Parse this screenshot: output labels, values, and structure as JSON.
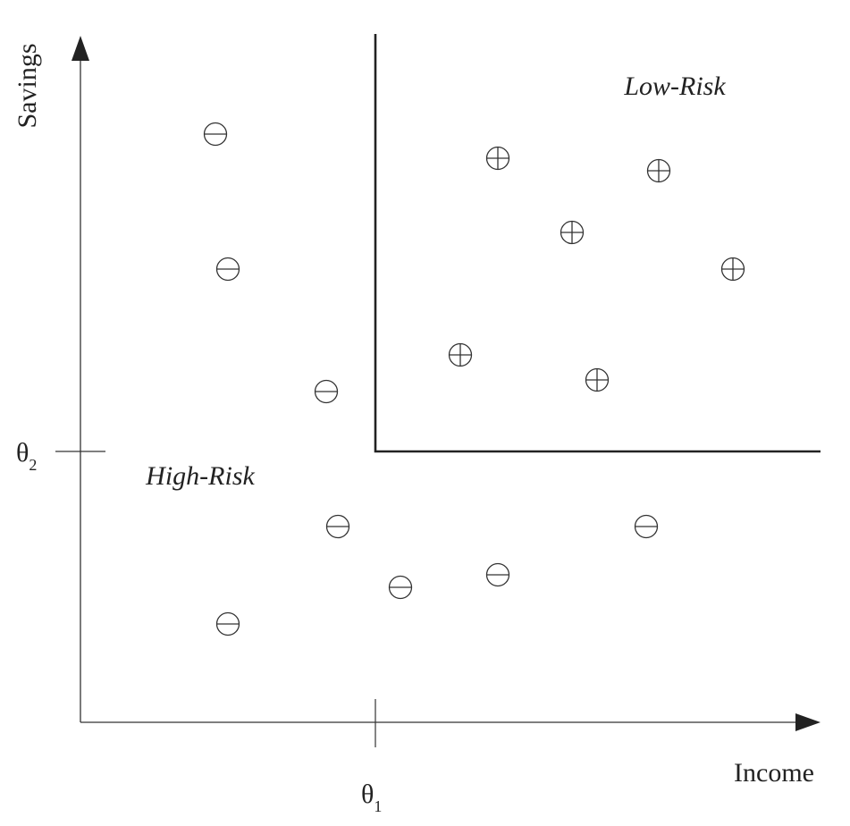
{
  "axes": {
    "x_label": "Income",
    "y_label": "Savings",
    "theta1": {
      "symbol": "θ",
      "sub": "1"
    },
    "theta2": {
      "symbol": "θ",
      "sub": "2"
    }
  },
  "regions": {
    "low_risk": "Low-Risk",
    "high_risk": "High-Risk"
  },
  "points": [
    {
      "class": "negative",
      "symbol": "minus"
    },
    {
      "class": "negative",
      "symbol": "minus"
    },
    {
      "class": "negative",
      "symbol": "minus"
    },
    {
      "class": "negative",
      "symbol": "minus"
    },
    {
      "class": "negative",
      "symbol": "minus"
    },
    {
      "class": "negative",
      "symbol": "minus"
    },
    {
      "class": "negative",
      "symbol": "minus"
    },
    {
      "class": "negative",
      "symbol": "minus"
    },
    {
      "class": "positive",
      "symbol": "plus"
    },
    {
      "class": "positive",
      "symbol": "plus"
    },
    {
      "class": "positive",
      "symbol": "plus"
    },
    {
      "class": "positive",
      "symbol": "plus"
    },
    {
      "class": "positive",
      "symbol": "plus"
    },
    {
      "class": "positive",
      "symbol": "plus"
    }
  ]
}
